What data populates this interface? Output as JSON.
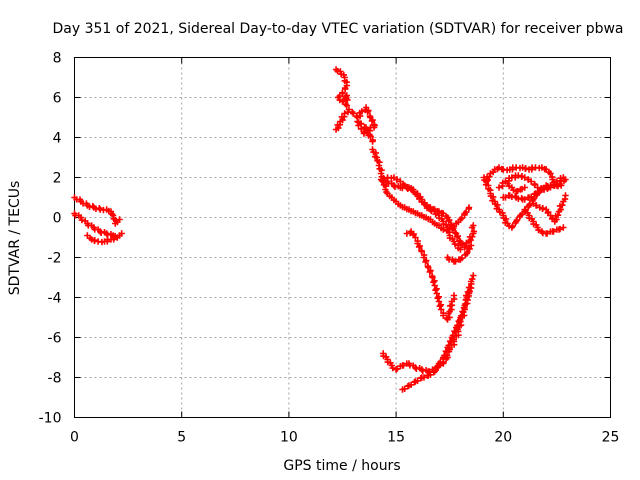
{
  "chart_data": {
    "type": "scatter",
    "title": "Day 351 of 2021, Sidereal Day-to-day VTEC variation (SDTVAR) for receiver pbwa",
    "xlabel": "GPS time / hours",
    "ylabel": "SDTVAR / TECUs",
    "xlim": [
      0,
      25
    ],
    "ylim": [
      -10,
      8
    ],
    "xticks": [
      "0",
      "5",
      "10",
      "15",
      "20",
      "25"
    ],
    "xtick_values": [
      0,
      5,
      10,
      15,
      20,
      25
    ],
    "yticks": [
      "8",
      "6",
      "4",
      "2",
      "0",
      "-2",
      "-4",
      "-6",
      "-8",
      "-10"
    ],
    "ytick_values": [
      8,
      6,
      4,
      2,
      0,
      -2,
      -4,
      -6,
      -8,
      -10
    ],
    "grid": true,
    "marker": "plus",
    "color": "#ff0000",
    "series": [
      {
        "points": [
          [
            0.0,
            1.0
          ],
          [
            0.3,
            0.8
          ],
          [
            0.6,
            0.6
          ],
          [
            0.9,
            0.5
          ],
          [
            1.2,
            0.4
          ],
          [
            1.5,
            0.4
          ],
          [
            1.7,
            0.3
          ],
          [
            1.8,
            0.1
          ],
          [
            1.9,
            -0.3
          ],
          [
            2.1,
            -0.1
          ]
        ]
      },
      {
        "points": [
          [
            0.0,
            0.2
          ],
          [
            0.3,
            0.0
          ],
          [
            0.6,
            -0.3
          ],
          [
            0.9,
            -0.5
          ],
          [
            1.2,
            -0.7
          ],
          [
            1.5,
            -0.8
          ],
          [
            1.8,
            -0.9
          ],
          [
            2.1,
            -0.9
          ],
          [
            2.2,
            -0.8
          ]
        ]
      },
      {
        "points": [
          [
            0.6,
            -0.9
          ],
          [
            0.8,
            -1.1
          ],
          [
            1.1,
            -1.2
          ],
          [
            1.4,
            -1.2
          ],
          [
            1.7,
            -1.1
          ],
          [
            2.0,
            -1.0
          ]
        ]
      },
      {
        "points": [
          [
            12.2,
            7.4
          ],
          [
            12.4,
            7.3
          ],
          [
            12.6,
            7.0
          ],
          [
            12.7,
            6.6
          ],
          [
            12.5,
            6.2
          ],
          [
            12.3,
            6.0
          ],
          [
            12.5,
            5.8
          ],
          [
            12.7,
            6.1
          ],
          [
            12.7,
            5.6
          ]
        ]
      },
      {
        "points": [
          [
            12.2,
            4.4
          ],
          [
            12.4,
            4.8
          ],
          [
            12.6,
            5.2
          ],
          [
            12.8,
            5.4
          ],
          [
            13.0,
            5.2
          ],
          [
            13.2,
            5.0
          ],
          [
            13.4,
            5.3
          ],
          [
            13.6,
            5.5
          ],
          [
            13.8,
            5.0
          ],
          [
            14.0,
            4.6
          ],
          [
            13.5,
            4.2
          ],
          [
            13.2,
            4.8
          ],
          [
            13.6,
            4.5
          ],
          [
            13.9,
            3.8
          ]
        ]
      },
      {
        "points": [
          [
            13.9,
            3.4
          ],
          [
            14.1,
            3.0
          ],
          [
            14.2,
            2.6
          ],
          [
            14.3,
            2.2
          ],
          [
            14.4,
            1.8
          ],
          [
            14.5,
            1.4
          ],
          [
            14.6,
            1.2
          ],
          [
            14.8,
            1.0
          ],
          [
            15.0,
            0.8
          ],
          [
            15.2,
            0.6
          ],
          [
            15.4,
            0.5
          ],
          [
            15.6,
            0.4
          ],
          [
            15.8,
            0.3
          ],
          [
            16.0,
            0.2
          ],
          [
            16.2,
            0.1
          ],
          [
            16.4,
            0.0
          ],
          [
            16.6,
            -0.1
          ],
          [
            16.8,
            -0.3
          ],
          [
            17.0,
            -0.4
          ],
          [
            17.2,
            -0.6
          ],
          [
            17.4,
            -0.6
          ],
          [
            17.6,
            -0.5
          ],
          [
            17.8,
            -0.3
          ],
          [
            18.0,
            -0.1
          ],
          [
            18.2,
            0.2
          ],
          [
            18.4,
            0.5
          ]
        ]
      },
      {
        "points": [
          [
            14.3,
            1.9
          ],
          [
            14.6,
            1.8
          ],
          [
            14.9,
            1.6
          ],
          [
            15.2,
            1.5
          ],
          [
            15.5,
            1.5
          ],
          [
            15.8,
            1.4
          ],
          [
            16.0,
            1.2
          ],
          [
            16.2,
            0.9
          ],
          [
            16.4,
            0.6
          ],
          [
            16.6,
            0.4
          ],
          [
            16.8,
            0.3
          ],
          [
            17.0,
            0.1
          ],
          [
            17.2,
            -0.2
          ],
          [
            17.4,
            -0.5
          ],
          [
            17.5,
            -0.9
          ],
          [
            17.7,
            -1.2
          ],
          [
            17.9,
            -1.4
          ],
          [
            18.0,
            -1.6
          ]
        ]
      },
      {
        "points": [
          [
            14.6,
            2.0
          ],
          [
            14.9,
            2.0
          ],
          [
            15.2,
            1.8
          ],
          [
            15.4,
            1.6
          ],
          [
            15.6,
            1.5
          ],
          [
            15.8,
            1.3
          ],
          [
            16.0,
            1.1
          ],
          [
            16.2,
            0.8
          ],
          [
            16.4,
            0.6
          ],
          [
            16.6,
            0.5
          ],
          [
            16.8,
            0.4
          ],
          [
            17.0,
            0.3
          ],
          [
            17.2,
            0.2
          ],
          [
            17.4,
            0.0
          ],
          [
            17.6,
            -0.4
          ],
          [
            17.8,
            -0.8
          ],
          [
            18.0,
            -1.2
          ],
          [
            18.2,
            -1.5
          ],
          [
            18.4,
            -1.2
          ],
          [
            18.6,
            -0.8
          ],
          [
            18.6,
            -0.4
          ]
        ]
      },
      {
        "points": [
          [
            17.4,
            -2.0
          ],
          [
            17.7,
            -2.2
          ],
          [
            18.0,
            -2.1
          ],
          [
            18.3,
            -1.8
          ],
          [
            18.5,
            -1.4
          ]
        ]
      },
      {
        "points": [
          [
            15.5,
            -0.8
          ],
          [
            15.7,
            -0.7
          ],
          [
            15.9,
            -1.0
          ],
          [
            16.0,
            -1.3
          ],
          [
            16.2,
            -1.7
          ],
          [
            16.3,
            -2.0
          ],
          [
            16.5,
            -2.5
          ],
          [
            16.7,
            -3.0
          ],
          [
            16.8,
            -3.4
          ],
          [
            16.9,
            -3.8
          ],
          [
            17.0,
            -4.2
          ],
          [
            17.1,
            -4.6
          ],
          [
            17.2,
            -4.9
          ],
          [
            17.4,
            -5.1
          ],
          [
            17.5,
            -4.7
          ],
          [
            17.6,
            -4.2
          ],
          [
            17.7,
            -3.9
          ]
        ]
      },
      {
        "points": [
          [
            15.3,
            -8.6
          ],
          [
            15.6,
            -8.4
          ],
          [
            15.9,
            -8.2
          ],
          [
            16.2,
            -8.0
          ],
          [
            16.5,
            -7.9
          ],
          [
            16.8,
            -7.7
          ],
          [
            17.0,
            -7.3
          ],
          [
            17.2,
            -7.0
          ],
          [
            17.4,
            -6.5
          ],
          [
            17.6,
            -6.0
          ],
          [
            17.8,
            -5.5
          ],
          [
            18.0,
            -5.0
          ],
          [
            18.2,
            -4.4
          ],
          [
            18.4,
            -3.8
          ],
          [
            18.5,
            -3.2
          ],
          [
            18.6,
            -2.9
          ]
        ]
      },
      {
        "points": [
          [
            14.4,
            -6.8
          ],
          [
            14.6,
            -7.1
          ],
          [
            14.8,
            -7.4
          ],
          [
            15.0,
            -7.6
          ],
          [
            15.3,
            -7.4
          ],
          [
            15.6,
            -7.3
          ],
          [
            15.9,
            -7.5
          ],
          [
            16.2,
            -7.6
          ],
          [
            16.5,
            -7.7
          ],
          [
            16.8,
            -7.6
          ],
          [
            17.0,
            -7.4
          ],
          [
            17.2,
            -7.3
          ],
          [
            17.4,
            -7.0
          ],
          [
            17.5,
            -6.6
          ],
          [
            17.7,
            -6.2
          ],
          [
            17.9,
            -5.7
          ],
          [
            18.0,
            -5.2
          ],
          [
            18.2,
            -4.6
          ],
          [
            18.3,
            -4.0
          ],
          [
            18.4,
            -3.5
          ]
        ]
      },
      {
        "points": [
          [
            19.2,
            1.8
          ],
          [
            19.4,
            2.2
          ],
          [
            19.6,
            2.4
          ],
          [
            19.8,
            2.5
          ],
          [
            20.0,
            2.4
          ],
          [
            20.3,
            2.4
          ],
          [
            20.6,
            2.5
          ],
          [
            20.9,
            2.5
          ],
          [
            21.2,
            2.4
          ],
          [
            21.5,
            2.5
          ],
          [
            21.8,
            2.5
          ],
          [
            22.0,
            2.4
          ],
          [
            22.2,
            2.2
          ],
          [
            22.3,
            1.9
          ],
          [
            22.5,
            1.6
          ],
          [
            22.7,
            1.8
          ],
          [
            22.9,
            1.9
          ]
        ]
      },
      {
        "points": [
          [
            19.1,
            2.0
          ],
          [
            19.3,
            1.6
          ],
          [
            19.4,
            1.2
          ],
          [
            19.6,
            0.8
          ],
          [
            19.8,
            0.4
          ],
          [
            20.0,
            0.1
          ],
          [
            20.2,
            -0.3
          ],
          [
            20.4,
            -0.5
          ],
          [
            20.6,
            -0.2
          ],
          [
            20.8,
            0.1
          ],
          [
            21.0,
            0.3
          ],
          [
            21.2,
            0.6
          ],
          [
            21.4,
            0.9
          ],
          [
            21.6,
            1.2
          ],
          [
            21.8,
            1.4
          ],
          [
            22.0,
            1.6
          ]
        ]
      },
      {
        "points": [
          [
            19.8,
            1.5
          ],
          [
            20.1,
            1.8
          ],
          [
            20.4,
            2.0
          ],
          [
            20.7,
            2.1
          ],
          [
            21.0,
            2.0
          ],
          [
            21.3,
            1.8
          ],
          [
            21.6,
            1.5
          ],
          [
            21.9,
            1.4
          ],
          [
            22.2,
            1.6
          ],
          [
            22.5,
            1.8
          ],
          [
            22.8,
            2.0
          ]
        ]
      },
      {
        "points": [
          [
            20.0,
            1.0
          ],
          [
            20.3,
            1.1
          ],
          [
            20.6,
            1.0
          ],
          [
            20.9,
            0.9
          ],
          [
            21.2,
            1.0
          ],
          [
            21.5,
            1.2
          ],
          [
            21.8,
            1.4
          ],
          [
            22.1,
            1.5
          ],
          [
            22.4,
            1.6
          ],
          [
            22.7,
            1.6
          ]
        ]
      },
      {
        "points": [
          [
            21.0,
            0.4
          ],
          [
            21.2,
            0.1
          ],
          [
            21.4,
            -0.2
          ],
          [
            21.6,
            -0.5
          ],
          [
            21.8,
            -0.7
          ],
          [
            22.0,
            -0.8
          ],
          [
            22.3,
            -0.7
          ],
          [
            22.6,
            -0.6
          ],
          [
            22.8,
            -0.5
          ]
        ]
      },
      {
        "points": [
          [
            21.4,
            0.7
          ],
          [
            21.7,
            0.5
          ],
          [
            22.0,
            0.4
          ],
          [
            22.2,
            0.1
          ],
          [
            22.4,
            -0.2
          ],
          [
            22.6,
            0.3
          ],
          [
            22.8,
            0.8
          ],
          [
            22.9,
            1.1
          ]
        ]
      },
      {
        "points": [
          [
            20.2,
            1.7
          ],
          [
            20.4,
            1.5
          ],
          [
            20.6,
            1.3
          ],
          [
            20.8,
            1.4
          ],
          [
            21.0,
            1.5
          ]
        ]
      }
    ]
  }
}
